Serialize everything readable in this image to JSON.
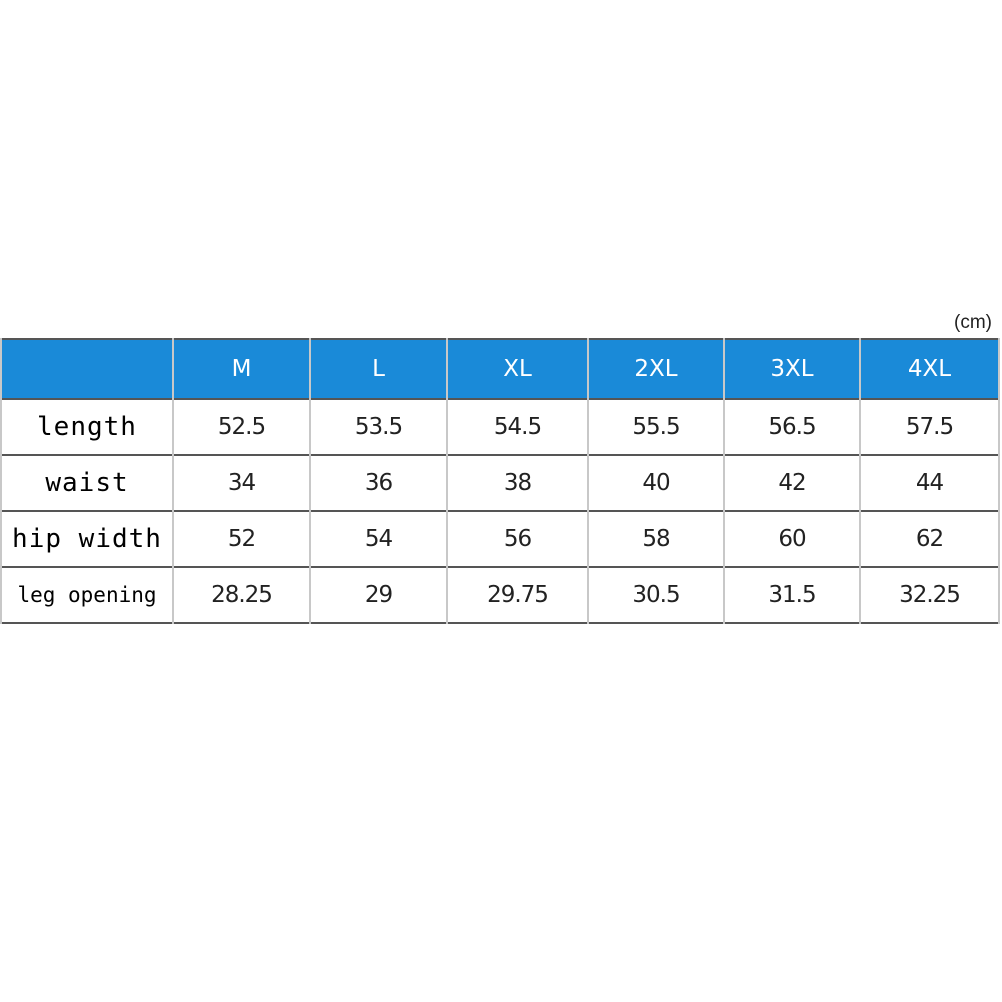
{
  "unit": "(cm)",
  "header": {
    "corner": "",
    "sizes": [
      "M",
      "L",
      "XL",
      "2XL",
      "3XL",
      "4XL"
    ]
  },
  "colors": {
    "header_bg": "#1a8ad8",
    "header_text": "#ffffff"
  },
  "rows": [
    {
      "label": "length",
      "values": [
        "52.5",
        "53.5",
        "54.5",
        "55.5",
        "56.5",
        "57.5"
      ]
    },
    {
      "label": "waist",
      "values": [
        "34",
        "36",
        "38",
        "40",
        "42",
        "44"
      ]
    },
    {
      "label": "hip width",
      "values": [
        "52",
        "54",
        "56",
        "58",
        "60",
        "62"
      ]
    },
    {
      "label": "leg opening",
      "values": [
        "28.25",
        "29",
        "29.75",
        "30.5",
        "31.5",
        "32.25"
      ]
    }
  ]
}
